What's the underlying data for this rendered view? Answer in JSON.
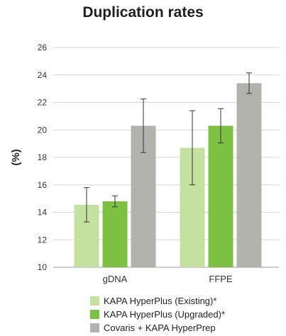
{
  "chart_data": {
    "type": "bar",
    "title": "Duplication rates",
    "ylabel": "(%)",
    "xlabel": "",
    "ylim": [
      10,
      26
    ],
    "yticks": [
      10,
      12,
      14,
      16,
      18,
      20,
      22,
      24,
      26
    ],
    "categories": [
      "gDNA",
      "FFPE"
    ],
    "grid": true,
    "legend_position": "bottom",
    "series": [
      {
        "name": "KAPA HyperPlus (Existing)*",
        "color": "#c5e1a0",
        "values": [
          14.55,
          18.7
        ],
        "error": [
          1.25,
          2.7
        ]
      },
      {
        "name": "KAPA HyperPlus (Upgraded)*",
        "color": "#7cc142",
        "values": [
          14.8,
          20.3
        ],
        "error": [
          0.4,
          1.25
        ]
      },
      {
        "name": "Covaris + KAPA HyperPrep",
        "color": "#b2b2ac",
        "values": [
          20.3,
          23.4
        ],
        "error": [
          1.95,
          0.75
        ]
      }
    ]
  }
}
